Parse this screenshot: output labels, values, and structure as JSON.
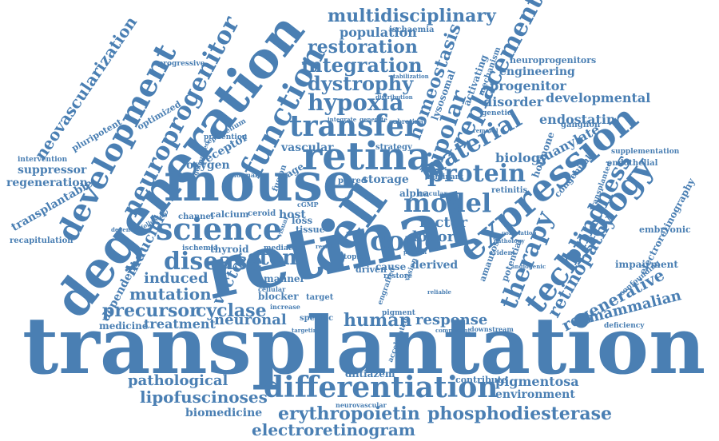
{
  "words": {
    "transplantation": "transplantation",
    "retinal": "retinal",
    "degeneration": "degeneration",
    "mouse": "mouse",
    "cell": "cell",
    "retina": "retina",
    "expression": "expression",
    "development": "development",
    "neuroprogenitor": "neuroprogenitor",
    "science": "science",
    "technology": "technology",
    "transfer": "transfer",
    "function": "function",
    "differentiation": "differentiation",
    "disease": "disease",
    "cone": "cone",
    "model": "model",
    "protein": "protein",
    "material": "material",
    "replacement": "replacement",
    "bipolar": "bipolar",
    "hypoxia": "hypoxia",
    "dystrophy": "dystrophy",
    "integration": "integration",
    "restoration": "restoration",
    "multidisciplinary": "multidisciplinary",
    "population": "population",
    "homeostasis": "homeostasis",
    "stem": "stem",
    "therapy": "therapy",
    "blindness": "blindness",
    "retinopathy": "retinopathy",
    "regenerative": "regenerative",
    "mammalian": "mammalian",
    "erythropoietin": "erythropoietin",
    "phosphodiesterase": "phosphodiesterase",
    "electroretinogram": "electroretinogram",
    "lipofuscinoses": "lipofuscinoses",
    "pathological": "pathological",
    "biomedicine": "biomedicine",
    "human": "human",
    "response": "response",
    "precursor": "precursor",
    "cyclase": "cyclase",
    "mutation": "mutation",
    "induced": "induced",
    "vector": "vector",
    "neuronal": "neuronal",
    "treatment": "treatment",
    "medicine": "medicine",
    "inducible": "inducible",
    "dependent": "dependent",
    "neovascularization": "neovascularization",
    "suppressor": "suppressor",
    "regeneration": "regeneration",
    "transplantable": "transplantable",
    "recapitulation": "recapitulation",
    "pluripotent": "pluripotent",
    "optimized": "optimized",
    "progressive": "progressive",
    "intervention": "intervention",
    "oxygen": "oxygen",
    "receptor": "receptor",
    "epithelium": "epithelium",
    "vascular": "vascular",
    "stage": "stage",
    "fusion": "fusion",
    "thyroid": "thyroid",
    "calcium": "calcium",
    "channel": "channel",
    "ceroid": "ceroid",
    "ischemia": "ischemia",
    "host": "host",
    "loss": "loss",
    "tissue": "tissue",
    "factor": "factor",
    "donor": "donor",
    "storage": "storage",
    "alpha": "alpha",
    "paired": "paired",
    "strategy": "strategy",
    "biology": "biology",
    "hormone": "hormone",
    "guanylate": "guanylate",
    "endostatin": "endostatin",
    "developmental": "developmental",
    "disorder": "disorder",
    "progenitor": "progenitor",
    "engineering": "engineering",
    "neuroprogenitors": "neuroprogenitors",
    "ganglion": "ganglion",
    "genetic": "genetic",
    "retinitis": "retinitis",
    "congenital": "congenital",
    "transplanted": "transplanted",
    "supplementation": "supplementation",
    "endothelial": "endothelial",
    "embryonic": "embryonic",
    "electroretinography": "electroretinography",
    "impairment": "impairment",
    "confounding": "confounding",
    "deficiency": "deficiency",
    "pigmentosa": "pigmentosa",
    "environment": "environment",
    "contribute": "contribute",
    "diltiazem": "diltiazem",
    "derived": "derived",
    "cause": "cause",
    "restore": "restore",
    "driven": "driven",
    "topic": "topic",
    "amaurosis": "amaurosis",
    "potential": "potential",
    "target": "target",
    "specific": "specific",
    "pigment": "pigment",
    "manner": "manner",
    "blocker": "blocker",
    "ischaemia": "ischaemia",
    "lysosomal": "lysosomal",
    "activating": "activating",
    "mechanism": "mechanism",
    "macular": "macular",
    "dominant": "dominant",
    "accelerated": "accelerated",
    "neurovascular": "neurovascular",
    "cellular": "cellular",
    "increase": "increase",
    "visual": "visual",
    "ganglion_small": "cGMP",
    "generated": "generated",
    "prevention": "prevention",
    "normal": "normal",
    "mediator": "mediator",
    "result": "result",
    "evident": "evident",
    "angiogenic": "angiogenic",
    "vision": "vision",
    "subretinal": "subretinal",
    "integrate": "integrate",
    "generate": "generate",
    "distribution": "distribution",
    "stabilization": "stabilization",
    "correlation": "correlation",
    "pathology": "pathology",
    "removal": "removal",
    "downstream": "downstream",
    "component": "component",
    "pattern": "pattern",
    "reliable": "reliable",
    "engrafted": "engrafted",
    "targeting": "targeting",
    "degenerative": "degenerative",
    "following": "following"
  },
  "colors": {
    "word": "#4a7fb3",
    "background": "#ffffff"
  }
}
